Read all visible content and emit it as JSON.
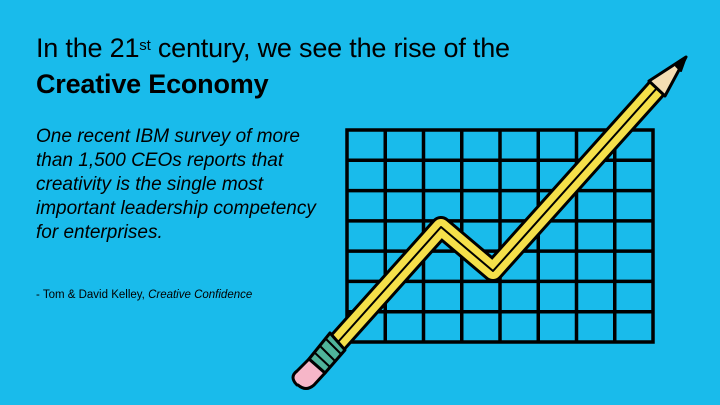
{
  "title": {
    "line1_before": "In the 21",
    "line1_sup": "st",
    "line1_after": " century, we see the rise of the",
    "line2_bold": "Creative Economy"
  },
  "quote": "One recent IBM survey of more than 1,500 CEOs reports that creativity is the single most important leadership competency for enterprises.",
  "attribution": {
    "authors": "- Tom & David Kelley, ",
    "book": "Creative Confidence"
  },
  "illustration": {
    "icons": [
      "grid-graphic",
      "pencil-icon"
    ],
    "colors": {
      "background": "#19BBEB",
      "pencil_body": "#F5E04A",
      "pencil_band": "#4FB39A",
      "pencil_eraser": "#F6B6C8",
      "pencil_wood": "#F3DDB3",
      "outline": "#000000"
    }
  }
}
